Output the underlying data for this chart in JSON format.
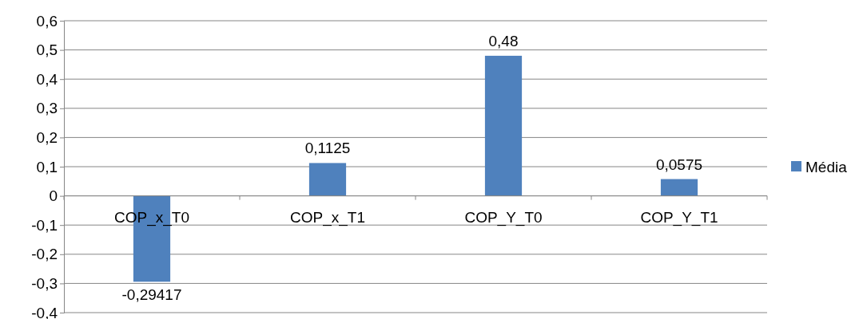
{
  "chart_data": {
    "type": "bar",
    "categories": [
      "COP_x_T0",
      "COP_x_T1",
      "COP_Y_T0",
      "COP_Y_T1"
    ],
    "series": [
      {
        "name": "Média",
        "color": "#4f81bd",
        "values": [
          -0.29417,
          0.1125,
          0.48,
          0.0575
        ],
        "value_labels": [
          "-0,29417",
          "0,1125",
          "0,48",
          "0,0575"
        ]
      }
    ],
    "ylim": [
      -0.4,
      0.6
    ],
    "yticks": [
      {
        "value": -0.4,
        "label": "-0,4"
      },
      {
        "value": -0.3,
        "label": "-0,3"
      },
      {
        "value": -0.2,
        "label": "-0,2"
      },
      {
        "value": -0.1,
        "label": "-0,1"
      },
      0,
      {
        "value": 0.1,
        "label": "0,1"
      },
      {
        "value": 0.2,
        "label": "0,2"
      },
      {
        "value": 0.3,
        "label": "0,3"
      },
      {
        "value": 0.4,
        "label": "0,4"
      },
      {
        "value": 0.5,
        "label": "0,5"
      },
      {
        "value": 0.6,
        "label": "0,6"
      }
    ],
    "grid": "y",
    "legend": "right"
  }
}
